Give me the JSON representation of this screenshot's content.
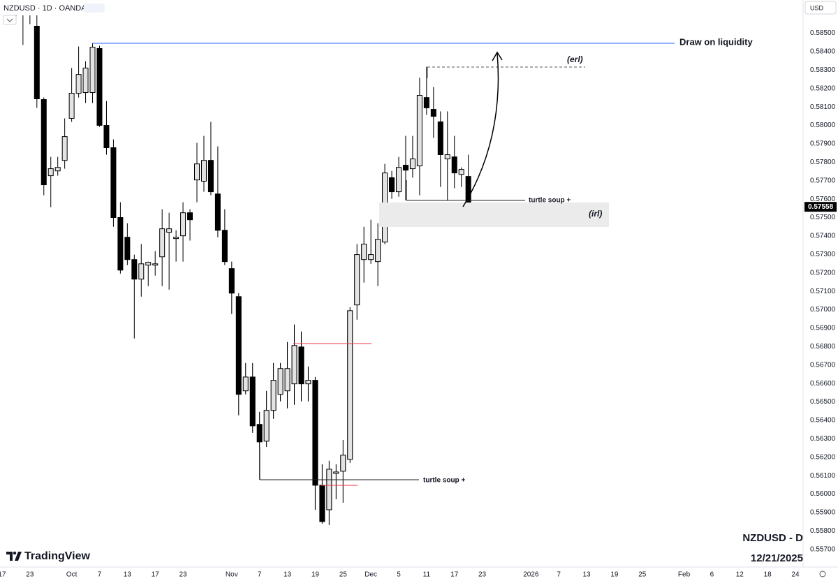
{
  "chart_data": {
    "type": "candlestick",
    "title": "NZDUSD · 1D · OANDA",
    "currency": "USD",
    "watermark": "NZDUSD - D",
    "date": "12/21/2025",
    "brand": "TradingView",
    "annotations": [
      "Draw on liquidity",
      "(erl)",
      "turtle soup +",
      "(irl)",
      "turtle soup +"
    ],
    "up_color": "#e3e3e3",
    "down_color": "#000000",
    "wick_color": "#000000",
    "grid": false,
    "ylim": [
      0.5561,
      0.5868
    ],
    "yticks": [
      {
        "value": 0.585,
        "label": "0.58500"
      },
      {
        "value": 0.584,
        "label": "0.58400"
      },
      {
        "value": 0.583,
        "label": "0.58300"
      },
      {
        "value": 0.582,
        "label": "0.58200"
      },
      {
        "value": 0.581,
        "label": "0.58100"
      },
      {
        "value": 0.58,
        "label": "0.58000"
      },
      {
        "value": 0.579,
        "label": "0.57900"
      },
      {
        "value": 0.578,
        "label": "0.57800"
      },
      {
        "value": 0.577,
        "label": "0.57700"
      },
      {
        "value": 0.576,
        "label": "0.57600"
      },
      {
        "value": 0.575,
        "label": "0.57500"
      },
      {
        "value": 0.574,
        "label": "0.57400"
      },
      {
        "value": 0.573,
        "label": "0.57300"
      },
      {
        "value": 0.572,
        "label": "0.57200"
      },
      {
        "value": 0.571,
        "label": "0.57100"
      },
      {
        "value": 0.57,
        "label": "0.57000"
      },
      {
        "value": 0.569,
        "label": "0.56900"
      },
      {
        "value": 0.568,
        "label": "0.56800"
      },
      {
        "value": 0.567,
        "label": "0.56700"
      },
      {
        "value": 0.566,
        "label": "0.56600"
      },
      {
        "value": 0.565,
        "label": "0.56500"
      },
      {
        "value": 0.564,
        "label": "0.56400"
      },
      {
        "value": 0.563,
        "label": "0.56300"
      },
      {
        "value": 0.562,
        "label": "0.56200"
      },
      {
        "value": 0.561,
        "label": "0.56100"
      },
      {
        "value": 0.56,
        "label": "0.56000"
      },
      {
        "value": 0.559,
        "label": "0.55900"
      },
      {
        "value": 0.558,
        "label": "0.55800"
      },
      {
        "value": 0.557,
        "label": "0.55700"
      }
    ],
    "categories": [
      "17",
      null,
      null,
      null,
      "23",
      null,
      null,
      null,
      null,
      null,
      "Oct",
      null,
      null,
      null,
      "7",
      null,
      null,
      null,
      "13",
      null,
      null,
      null,
      "17",
      null,
      null,
      null,
      "23",
      null,
      null,
      null,
      null,
      null,
      null,
      "Nov",
      null,
      null,
      null,
      "7",
      null,
      null,
      null,
      "13",
      null,
      null,
      null,
      "19",
      null,
      null,
      null,
      "25",
      null,
      null,
      null,
      "Dec",
      null,
      null,
      null,
      "5",
      null,
      null,
      null,
      "11",
      null,
      null,
      null,
      "17",
      null,
      null,
      null,
      "23",
      null,
      null,
      null,
      null,
      null,
      null,
      "2026",
      null,
      null,
      null,
      "7",
      null,
      null,
      null,
      "13",
      null,
      null,
      null,
      "19",
      null,
      null,
      null,
      "25",
      null,
      null,
      null,
      null,
      null,
      "Feb",
      null,
      null,
      null,
      "6",
      null,
      null,
      null,
      "12",
      null,
      null,
      null,
      "18",
      null,
      null,
      null,
      "24"
    ],
    "open": [
      null,
      null,
      0.58663,
      0.58644,
      0.58644,
      0.58538,
      0.5814,
      0.57727,
      0.57753,
      0.5781,
      0.58038,
      0.58174,
      0.58178,
      0.58178,
      0.58417,
      0.58,
      0.57879,
      0.575,
      0.57393,
      0.57272,
      0.57166,
      0.57242,
      0.57242,
      0.57287,
      0.5742,
      0.57386,
      0.57401,
      0.57526,
      0.57704,
      0.57697,
      0.5781,
      0.57628,
      0.57431,
      0.57223,
      0.57071,
      0.5656,
      0.56635,
      0.56378,
      0.56287,
      0.56454,
      0.56541,
      0.5656,
      0.56598,
      0.56798,
      0.56598,
      0.56617,
      0.56048,
      0.55915,
      0.56112,
      0.56124,
      0.56188,
      0.57026,
      0.57272,
      0.57272,
      0.57261,
      0.57367,
      0.57716,
      0.5764,
      0.57784,
      0.57765,
      0.5778,
      0.58151,
      0.58087,
      0.58019,
      0.57818,
      0.57829,
      0.57734,
      0.57723,
      null,
      null,
      null,
      null,
      null,
      null,
      null,
      null,
      null,
      null,
      null,
      null,
      null,
      null,
      null,
      null,
      null,
      null,
      null,
      null,
      null,
      null,
      null,
      null,
      null,
      null,
      null,
      null,
      null,
      null,
      null,
      null,
      null,
      null,
      null,
      null,
      null,
      null,
      null,
      null,
      null,
      null,
      null,
      null,
      null,
      null,
      null
    ],
    "high": [
      null,
      null,
      0.58682,
      0.58674,
      0.58663,
      0.58606,
      0.58151,
      0.57829,
      0.57829,
      0.58038,
      0.58311,
      0.58428,
      0.58348,
      0.58447,
      0.58432,
      0.58132,
      0.57924,
      0.57583,
      0.57469,
      0.57299,
      0.57356,
      0.57261,
      0.57318,
      0.57545,
      0.57526,
      0.57431,
      0.57583,
      0.57545,
      0.57905,
      0.57943,
      0.58019,
      0.57886,
      0.57545,
      0.57261,
      0.5709,
      0.56711,
      0.56711,
      0.56446,
      0.5656,
      0.56711,
      0.56711,
      0.56825,
      0.5692,
      0.56882,
      0.56692,
      0.56635,
      0.56162,
      0.56181,
      0.56162,
      0.56294,
      0.57014,
      0.57356,
      0.5745,
      0.57488,
      0.57469,
      0.57791,
      0.57753,
      0.57829,
      0.57943,
      0.57943,
      0.58258,
      0.58318,
      0.58208,
      0.58076,
      0.58076,
      0.57943,
      0.57772,
      0.57841,
      null,
      null,
      null,
      null,
      null,
      null,
      null,
      null,
      null,
      null,
      null,
      null,
      null,
      null,
      null,
      null,
      null,
      null,
      null,
      null,
      null,
      null,
      null,
      null,
      null,
      null,
      null,
      null,
      null,
      null,
      null,
      null,
      null,
      null,
      null,
      null,
      null,
      null,
      null,
      null,
      null,
      null,
      null,
      null,
      null,
      null,
      null
    ],
    "low": [
      null,
      null,
      0.58568,
      0.58436,
      0.58549,
      0.58095,
      0.57621,
      0.57556,
      0.57727,
      0.57765,
      0.58019,
      0.58151,
      0.58121,
      0.58121,
      0.57992,
      0.57841,
      0.5745,
      0.57196,
      0.57242,
      0.56844,
      0.57071,
      0.57128,
      0.57185,
      0.57128,
      0.57109,
      0.57261,
      0.57261,
      0.57375,
      0.57583,
      0.5764,
      0.57621,
      0.57393,
      0.57242,
      0.56977,
      0.56427,
      0.56541,
      0.56332,
      0.56078,
      0.56256,
      0.56408,
      0.56503,
      0.56465,
      0.56484,
      0.56503,
      0.56503,
      0.55915,
      0.5584,
      0.55832,
      0.55972,
      0.55953,
      0.56169,
      0.56946,
      0.57147,
      0.57249,
      0.57128,
      0.57356,
      0.57602,
      0.57613,
      0.57594,
      0.57716,
      0.57621,
      0.58057,
      0.57932,
      0.57666,
      0.57594,
      0.57659,
      0.57666,
      0.57469,
      null,
      null,
      null,
      null,
      null,
      null,
      null,
      null,
      null,
      null,
      null,
      null,
      null,
      null,
      null,
      null,
      null,
      null,
      null,
      null,
      null,
      null,
      null,
      null,
      null,
      null,
      null,
      null,
      null,
      null,
      null,
      null,
      null,
      null,
      null,
      null,
      null,
      null,
      null,
      null,
      null,
      null,
      null,
      null,
      null,
      null,
      null
    ],
    "close": [
      null,
      null,
      0.58625,
      0.58614,
      0.58599,
      0.58144,
      0.57678,
      0.57765,
      0.57772,
      0.57939,
      0.58174,
      0.58276,
      0.58311,
      0.58424,
      0.58,
      0.57879,
      0.575,
      0.57215,
      0.57272,
      0.57166,
      0.57249,
      0.57257,
      0.57249,
      0.57439,
      0.57439,
      0.57393,
      0.57526,
      0.57488,
      0.57791,
      0.5781,
      0.5764,
      0.57431,
      0.57261,
      0.5709,
      0.56541,
      0.56635,
      0.5637,
      0.56283,
      0.56454,
      0.56617,
      0.56681,
      0.56681,
      0.56806,
      0.56598,
      0.56617,
      0.56048,
      0.55851,
      0.56135,
      0.5612,
      0.56211,
      0.56995,
      0.57299,
      0.57356,
      0.57299,
      0.57382,
      0.57742,
      0.5764,
      0.57772,
      0.57757,
      0.57818,
      0.58163,
      0.58095,
      0.58049,
      0.57841,
      0.57841,
      0.57742,
      0.57761,
      0.57558,
      null,
      null,
      null,
      null,
      null,
      null,
      null,
      null,
      null,
      null,
      null,
      null,
      null,
      null,
      null,
      null,
      null,
      null,
      null,
      null,
      null,
      null,
      null,
      null,
      null,
      null,
      null,
      null,
      null,
      null,
      null,
      null,
      null,
      null,
      null,
      null,
      null,
      null,
      null,
      null,
      null,
      null,
      null,
      null,
      null,
      null,
      null
    ]
  }
}
